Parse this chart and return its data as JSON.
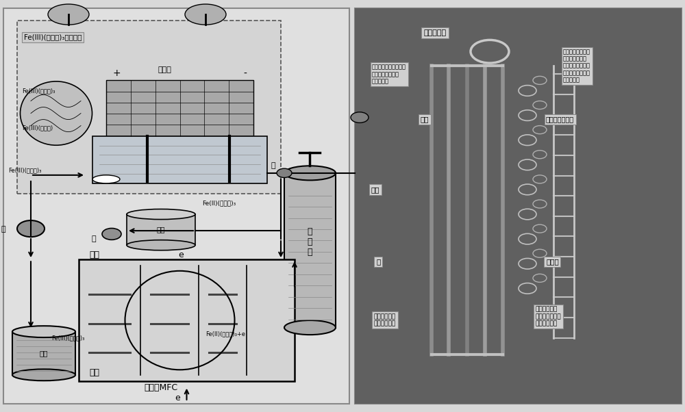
{
  "fig_width": 10.0,
  "fig_height": 6.02,
  "bg_color": "#d8d8d8",
  "left_panel_bg": "#e0e0e0",
  "right_panel_bg": "#5a5a5a",
  "regen_title": "Fe(III)(联吵啊)₃再生系统",
  "label_solar": "太阳能",
  "label_hydrogen": "氢",
  "label_pump1": "泵",
  "label_pump2": "泵",
  "label_medium": "介质",
  "label_feiii_1": "Fe(III)(联吵啊)₃",
  "label_feiii_2": "Fe(III)(联吵啊)",
  "label_feiii_3": "Fe(III)(联吵啊)₃",
  "label_feii_1": "Fe(II)(联吵啊)₃",
  "label_feiii_mfc": "Fe(III)(联吵啊)₃",
  "label_feii_mfc": "Fe(II)(联吵啊)₃+e",
  "label_anode": "阳极",
  "label_cathode": "阴极",
  "label_mfc": "堆叠的MFC",
  "label_store": "储存",
  "label_tank": "储\n气\n罐",
  "label_e1": "e",
  "label_e2": "e",
  "label_fc_title": "燃料电池组",
  "label_anode_desc": "阳极：扩散氢并从燃料\n电池传导出电子的\n负极接线柱",
  "label_cathode_desc": "阴极：分配氢并使\n电子返回电池的\n正极接线柱：在此\n质子与氢离子和氧\n结合形成水",
  "label_electron": "电子",
  "label_oxygen": "氧（来自空气）",
  "label_proton": "质子",
  "label_h2": "氢",
  "label_steam": "水蕊气",
  "label_catalyst": "傅化剂：促进\n氢和氧的反应",
  "label_membrane": "质子交换膜：\n只允许带正电荷\n的氢离子流过"
}
